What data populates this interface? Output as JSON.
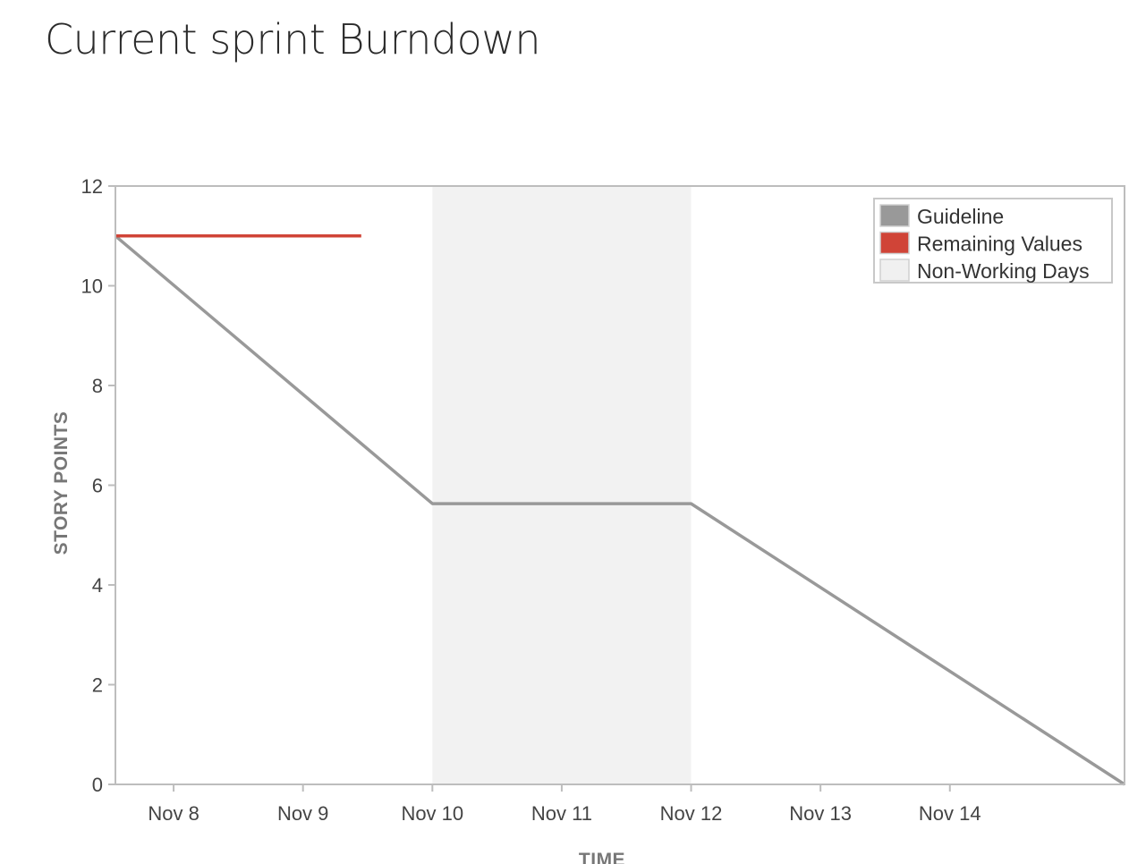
{
  "page": {
    "title": "Current sprint Burndown"
  },
  "chart_data": {
    "type": "line",
    "title": "",
    "xlabel": "TIME",
    "ylabel": "STORY POINTS",
    "ylim": [
      0,
      12
    ],
    "yticks": [
      0,
      2,
      4,
      6,
      8,
      10,
      12
    ],
    "xlim": [
      -0.45,
      7.35
    ],
    "categories": [
      "Nov 8",
      "Nov 9",
      "Nov 10",
      "Nov 11",
      "Nov 12",
      "Nov 13",
      "Nov 14"
    ],
    "grid": false,
    "legend_position": "top-right",
    "legend": [
      {
        "name": "Guideline",
        "color": "#999999"
      },
      {
        "name": "Remaining Values",
        "color": "#d04437"
      },
      {
        "name": "Non-Working Days",
        "color": "#f0f0f0"
      }
    ],
    "non_working": {
      "name": "Non-Working Days",
      "from": 2,
      "to": 4,
      "color": "#f2f2f2"
    },
    "series": [
      {
        "name": "Guideline",
        "color": "#999999",
        "points": [
          [
            -0.45,
            11
          ],
          [
            2,
            5.63
          ],
          [
            4,
            5.63
          ],
          [
            7.35,
            0
          ]
        ]
      },
      {
        "name": "Remaining Values",
        "color": "#d04437",
        "points": [
          [
            -0.45,
            11
          ],
          [
            1.45,
            11
          ]
        ]
      }
    ]
  }
}
